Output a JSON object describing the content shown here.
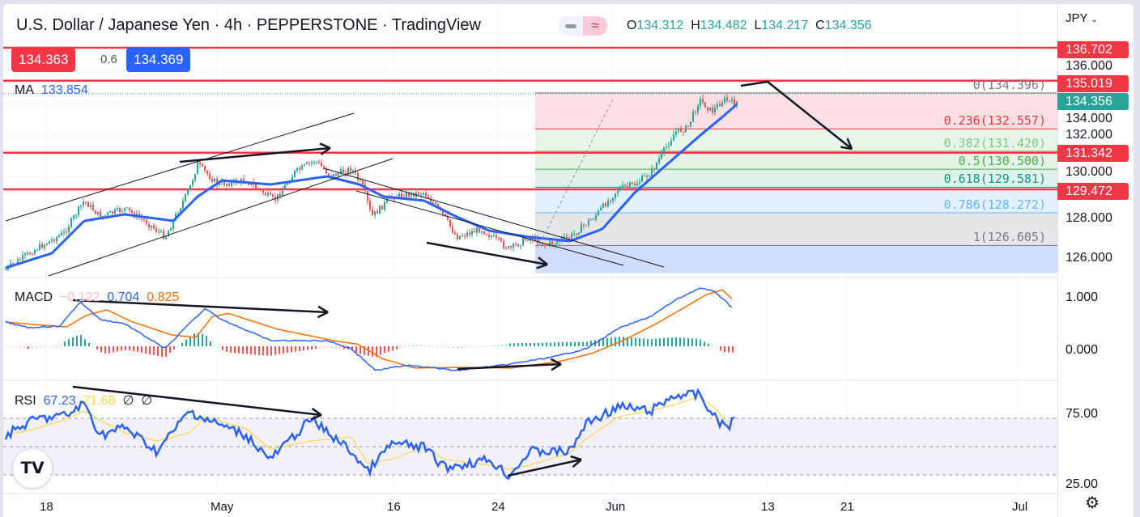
{
  "header": {
    "title": "U.S. Dollar / Japanese Yen · 4h · PEPPERSTONE · TradingView",
    "ohlc": {
      "o_label": "O",
      "o": "134.312",
      "h_label": "H",
      "h": "134.482",
      "l_label": "L",
      "l": "134.217",
      "c_label": "C",
      "c": "134.356"
    },
    "toggle_icon": "≈"
  },
  "quote": {
    "sell": "134.363",
    "spread": "0.6",
    "buy": "134.369"
  },
  "ma": {
    "label": "MA",
    "value": "133.854"
  },
  "macd": {
    "label": "MACD",
    "hist": "−0.122",
    "macd": "0.704",
    "signal": "0.825"
  },
  "rsi": {
    "label": "RSI",
    "value": "67.23",
    "ma": "71.68",
    "x1": "∅",
    "x2": "∅"
  },
  "price_axis": {
    "currency": "JPY",
    "ticks": [
      "136.000",
      "134.000",
      "132.000",
      "130.000",
      "128.000",
      "126.000"
    ],
    "labels": [
      {
        "text": "136.702",
        "price": 136.702,
        "color": "#f23645"
      },
      {
        "text": "135.019",
        "price": 135.019,
        "color": "#f23645"
      },
      {
        "text": "134.356",
        "price": 134.356,
        "color": "#26a69a"
      },
      {
        "text": "131.342",
        "price": 131.342,
        "color": "#f23645"
      },
      {
        "text": "129.472",
        "price": 129.472,
        "color": "#f23645"
      }
    ]
  },
  "macd_axis": [
    "1.000",
    "0.000"
  ],
  "rsi_axis": [
    "75.00",
    "25.00"
  ],
  "time_axis": [
    "18",
    "May",
    "16",
    "24",
    "Jun",
    "13",
    "21",
    "Jul"
  ],
  "fib": [
    {
      "text": "0(134.396)",
      "price": 134.396,
      "color": "#787b86"
    },
    {
      "text": "0.236(132.557)",
      "price": 132.557,
      "color": "#f23645"
    },
    {
      "text": "0.382(131.420)",
      "price": 131.42,
      "color": "#81c784"
    },
    {
      "text": "0.5(130.500)",
      "price": 130.5,
      "color": "#4caf50"
    },
    {
      "text": "0.618(129.581)",
      "price": 129.581,
      "color": "#089981"
    },
    {
      "text": "0.786(128.272)",
      "price": 128.272,
      "color": "#64b5f6"
    },
    {
      "text": "1(126.605)",
      "price": 126.605,
      "color": "#787b86"
    }
  ],
  "horizontal_levels": [
    136.702,
    135.019,
    131.342,
    129.472
  ],
  "colors": {
    "up": "#26a69a",
    "down": "#ef5350",
    "ma": "#2962ff",
    "signal": "#ff6d00",
    "rsi_ma": "#f7d94c",
    "level": "#f23645"
  },
  "logo": "TV"
}
